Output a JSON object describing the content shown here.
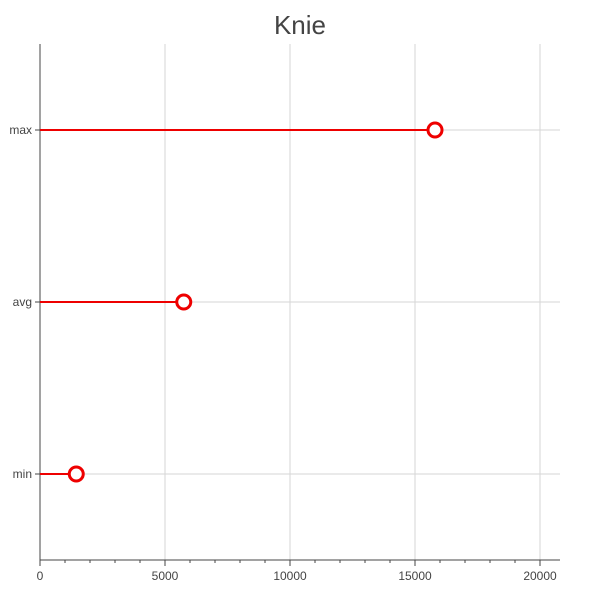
{
  "chart_data": {
    "type": "lollipop",
    "title": "Knie",
    "xlabel": "",
    "ylabel": "",
    "categories": [
      "max",
      "avg",
      "min"
    ],
    "values": [
      15800,
      5750,
      1450
    ],
    "xlim": [
      0,
      20800
    ],
    "x_ticks": [
      0,
      5000,
      10000,
      15000,
      20000
    ],
    "x_tick_labels": [
      "0",
      "5000",
      "10000",
      "15000",
      "20000"
    ],
    "grid": true,
    "color": "#ee0000",
    "marker": "open-circle"
  }
}
